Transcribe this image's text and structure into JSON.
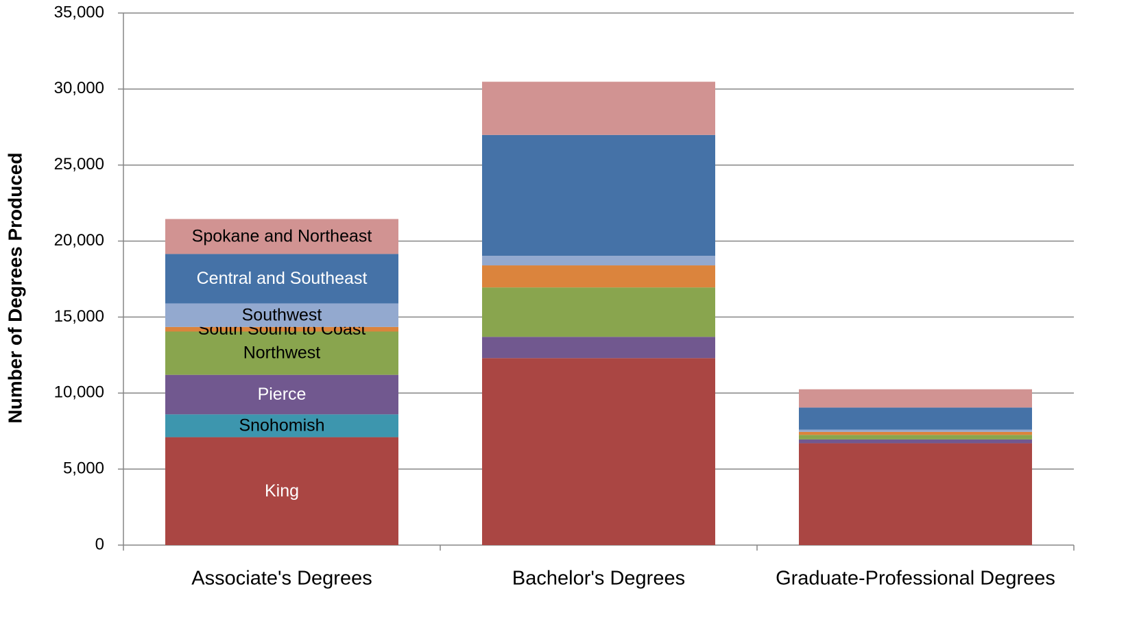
{
  "chart_data": {
    "type": "stacked_bar",
    "y_label": "Number of Degrees Produced",
    "categories": [
      "Associate's Degrees",
      "Bachelor's Degrees",
      "Graduate-Professional Degrees"
    ],
    "series": [
      {
        "name": "King",
        "color": "#aa4643",
        "values": [
          7100,
          12300,
          6700
        ]
      },
      {
        "name": "Snohomish",
        "color": "#3d96ae",
        "values": [
          1500,
          0,
          0
        ]
      },
      {
        "name": "Pierce",
        "color": "#71588f",
        "values": [
          2600,
          1400,
          250
        ]
      },
      {
        "name": "Northwest",
        "color": "#89a54e",
        "values": [
          2850,
          3250,
          300
        ]
      },
      {
        "name": "South Sound to Coast",
        "color": "#db843d",
        "values": [
          300,
          1450,
          200
        ]
      },
      {
        "name": "Southwest",
        "color": "#93a9cf",
        "values": [
          1550,
          630,
          150
        ]
      },
      {
        "name": "Central and Southeast",
        "color": "#4572a7",
        "values": [
          3250,
          7950,
          1450
        ]
      },
      {
        "name": "Spokane and Northeast",
        "color": "#d19392",
        "values": [
          2300,
          3500,
          1200
        ]
      }
    ],
    "ylim": [
      0,
      35000
    ],
    "yticks": [
      0,
      {
        "value": 5000,
        "label": "5,000"
      },
      {
        "value": 10000,
        "label": "10,000"
      },
      {
        "value": 15000,
        "label": "15,000"
      },
      {
        "value": 20000,
        "label": "20,000"
      },
      {
        "value": 25000,
        "label": "25,000"
      },
      {
        "value": 30000,
        "label": "30,000"
      },
      {
        "value": 35000,
        "label": "35,000"
      }
    ],
    "grid": true
  }
}
